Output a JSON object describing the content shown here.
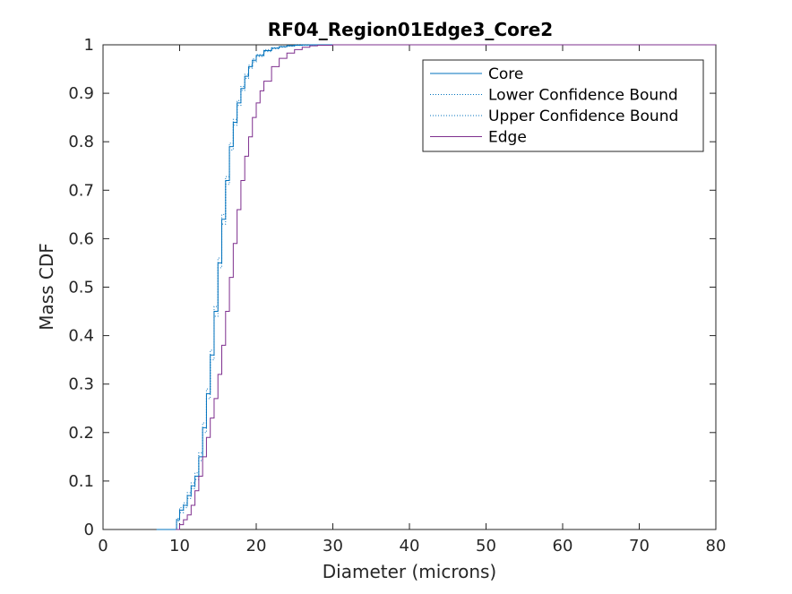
{
  "chart_data": {
    "type": "line",
    "title": "RF04_Region01Edge3_Core2",
    "xlabel": "Diameter (microns)",
    "ylabel": "Mass CDF",
    "xlim": [
      0,
      80
    ],
    "ylim": [
      0,
      1
    ],
    "xticks": [
      "0",
      "10",
      "20",
      "30",
      "40",
      "50",
      "60",
      "70",
      "80"
    ],
    "yticks": [
      "0",
      "0.1",
      "0.2",
      "0.3",
      "0.4",
      "0.5",
      "0.6",
      "0.7",
      "0.8",
      "0.9",
      "1"
    ],
    "grid": false,
    "legend_position": "top-right",
    "series": [
      {
        "name": "Core",
        "color": "#0072BD",
        "style": "solid",
        "x": [
          7,
          9.3,
          9.6,
          10,
          10.5,
          11,
          11.5,
          12,
          12.5,
          13,
          13.5,
          14,
          14.5,
          15,
          15.5,
          16,
          16.5,
          17,
          17.5,
          18,
          18.5,
          19,
          19.5,
          20,
          21,
          22,
          23,
          24,
          25,
          26,
          27,
          28,
          30,
          40,
          50,
          60,
          70,
          74
        ],
        "y": [
          0,
          0,
          0.02,
          0.04,
          0.05,
          0.07,
          0.09,
          0.11,
          0.15,
          0.21,
          0.28,
          0.36,
          0.45,
          0.55,
          0.64,
          0.72,
          0.79,
          0.84,
          0.88,
          0.91,
          0.935,
          0.955,
          0.968,
          0.978,
          0.988,
          0.993,
          0.996,
          0.998,
          0.999,
          0.9995,
          1,
          1,
          1,
          1,
          1,
          1,
          1,
          1
        ]
      },
      {
        "name": "Lower Confidence Bound",
        "color": "#0072BD",
        "style": "dotted",
        "x": [
          7,
          9.3,
          9.6,
          10,
          10.5,
          11,
          11.5,
          12,
          12.5,
          13,
          13.5,
          14,
          14.5,
          15,
          15.5,
          16,
          16.5,
          17,
          17.5,
          18,
          18.5,
          19,
          19.5,
          20,
          21,
          22,
          23,
          24,
          25,
          26,
          27,
          28,
          30,
          40,
          50,
          60,
          70,
          74
        ],
        "y": [
          0,
          0,
          0.017,
          0.035,
          0.045,
          0.064,
          0.084,
          0.103,
          0.142,
          0.2,
          0.27,
          0.35,
          0.44,
          0.54,
          0.63,
          0.712,
          0.783,
          0.834,
          0.875,
          0.906,
          0.931,
          0.952,
          0.965,
          0.976,
          0.986,
          0.992,
          0.995,
          0.997,
          0.9985,
          0.999,
          0.9995,
          1,
          1,
          1,
          1,
          1,
          1,
          1
        ]
      },
      {
        "name": "Upper Confidence Bound",
        "color": "#0072BD",
        "style": "dotted",
        "x": [
          7,
          9.3,
          9.6,
          10,
          10.5,
          11,
          11.5,
          12,
          12.5,
          13,
          13.5,
          14,
          14.5,
          15,
          15.5,
          16,
          16.5,
          17,
          17.5,
          18,
          18.5,
          19,
          19.5,
          20,
          21,
          22,
          23,
          24,
          25,
          26,
          27,
          28,
          30,
          40,
          50,
          60,
          70,
          74
        ],
        "y": [
          0,
          0,
          0.023,
          0.045,
          0.055,
          0.076,
          0.096,
          0.117,
          0.158,
          0.22,
          0.29,
          0.37,
          0.46,
          0.56,
          0.65,
          0.728,
          0.797,
          0.846,
          0.885,
          0.914,
          0.939,
          0.958,
          0.971,
          0.98,
          0.99,
          0.994,
          0.997,
          0.999,
          1,
          1,
          1,
          1,
          1,
          1,
          1,
          1,
          1,
          1
        ]
      },
      {
        "name": "Edge",
        "color": "#7E2F8E",
        "style": "solid",
        "x": [
          9.5,
          10,
          10.5,
          11,
          11.5,
          12,
          12.5,
          13,
          13.5,
          14,
          14.5,
          15,
          15.5,
          16,
          16.5,
          17,
          17.5,
          18,
          18.5,
          19,
          19.5,
          20,
          20.5,
          21,
          22,
          23,
          24,
          25,
          26,
          27,
          28,
          30,
          40,
          50,
          60,
          70,
          80
        ],
        "y": [
          0,
          0.01,
          0.02,
          0.03,
          0.05,
          0.08,
          0.11,
          0.15,
          0.19,
          0.23,
          0.27,
          0.32,
          0.38,
          0.45,
          0.52,
          0.59,
          0.66,
          0.72,
          0.77,
          0.81,
          0.85,
          0.88,
          0.905,
          0.925,
          0.955,
          0.972,
          0.983,
          0.99,
          0.995,
          0.998,
          0.999,
          1,
          1,
          1,
          1,
          1,
          1
        ]
      }
    ]
  }
}
